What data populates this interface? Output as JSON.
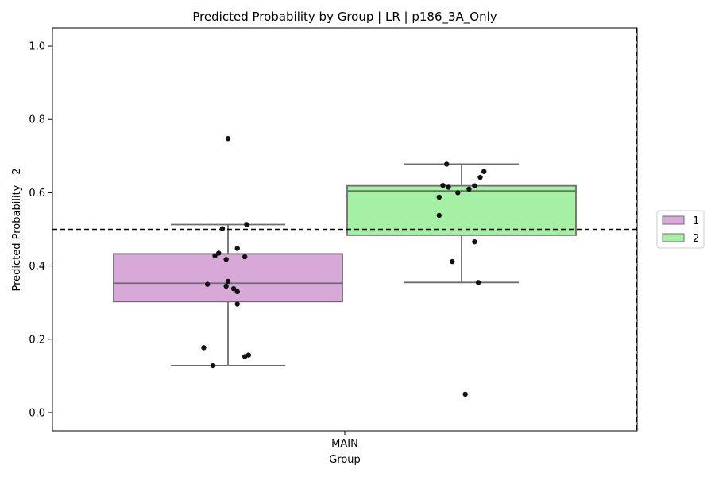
{
  "chart_data": {
    "type": "box",
    "title": "Predicted Probability by Group | LR | p186_3A_Only",
    "xlabel": "Group",
    "ylabel": "Predicted Probability - 2",
    "categories": [
      "MAIN"
    ],
    "ylim": [
      -0.05,
      1.05
    ],
    "yticks": [
      0.0,
      0.2,
      0.4,
      0.6,
      0.8,
      1.0
    ],
    "ytick_labels": [
      "0.0",
      "0.2",
      "0.4",
      "0.6",
      "0.8",
      "1.0"
    ],
    "threshold": 0.5,
    "grid": false,
    "legend": {
      "position": "right",
      "entries": [
        "1",
        "2"
      ]
    },
    "colors": {
      "1": "#d8a8d8",
      "2": "#a6f0a6",
      "box_edge": "#6e6e6e",
      "points": "#111111"
    },
    "series": [
      {
        "name": "1",
        "box": {
          "q1": 0.303,
          "median": 0.353,
          "q3": 0.433,
          "whisker_low": 0.128,
          "whisker_high": 0.513
        },
        "points": [
          0.748,
          0.513,
          0.502,
          0.448,
          0.435,
          0.428,
          0.425,
          0.418,
          0.358,
          0.35,
          0.345,
          0.338,
          0.33,
          0.296,
          0.177,
          0.157,
          0.153,
          0.128
        ],
        "jitter": [
          0.0,
          0.1,
          -0.03,
          0.05,
          -0.05,
          -0.07,
          0.09,
          -0.01,
          0.0,
          -0.11,
          -0.01,
          0.03,
          0.05,
          0.05,
          -0.13,
          0.11,
          0.09,
          -0.08
        ]
      },
      {
        "name": "2",
        "box": {
          "q1": 0.484,
          "median": 0.605,
          "q3": 0.619,
          "whisker_low": 0.355,
          "whisker_high": 0.678
        },
        "points": [
          0.678,
          0.658,
          0.642,
          0.62,
          0.619,
          0.615,
          0.61,
          0.6,
          0.588,
          0.538,
          0.466,
          0.412,
          0.355,
          0.05
        ],
        "jitter": [
          -0.08,
          0.12,
          0.1,
          -0.1,
          0.07,
          -0.07,
          0.04,
          -0.02,
          -0.12,
          -0.12,
          0.07,
          -0.05,
          0.09,
          0.02
        ]
      }
    ]
  }
}
